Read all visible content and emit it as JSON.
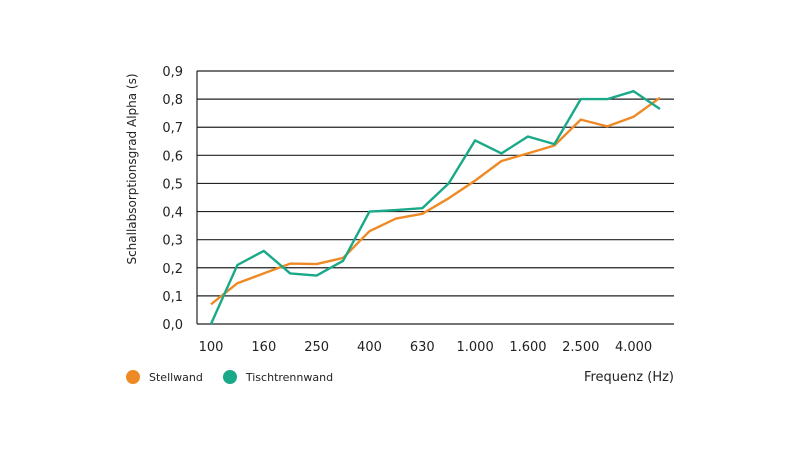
{
  "chart_data": {
    "type": "line",
    "title": "",
    "xlabel": "Frequenz (Hz)",
    "ylabel": "Schallabsorptionsgrad Alpha (s)",
    "ylim": [
      0,
      0.9
    ],
    "y_ticks": [
      "0,0",
      "0,1",
      "0,2",
      "0,3",
      "0,4",
      "0,5",
      "0,6",
      "0,7",
      "0,8",
      "0,9"
    ],
    "x": [
      "100",
      "125",
      "160",
      "200",
      "250",
      "315",
      "400",
      "500",
      "630",
      "800",
      "1.000",
      "1.250",
      "1.600",
      "2.000",
      "2.500",
      "3.150",
      "4.000",
      "5.000"
    ],
    "x_tick_labels": [
      "100",
      "160",
      "250",
      "400",
      "630",
      "1.000",
      "1.600",
      "2.500",
      "4.000"
    ],
    "x_tick_indices": [
      0,
      2,
      4,
      6,
      8,
      10,
      12,
      14,
      16
    ],
    "grid": "horizontal",
    "series": [
      {
        "name": "Stellwand",
        "color": "#ee8a25",
        "values": [
          0.07,
          0.145,
          0.18,
          0.215,
          0.213,
          0.235,
          0.33,
          0.375,
          0.392,
          0.447,
          0.51,
          0.58,
          0.607,
          0.635,
          0.727,
          0.703,
          0.737,
          0.805
        ]
      },
      {
        "name": "Tischtrennwand",
        "color": "#19a989",
        "values": [
          0.0,
          0.21,
          0.26,
          0.18,
          0.172,
          0.225,
          0.4,
          0.405,
          0.412,
          0.5,
          0.653,
          0.607,
          0.667,
          0.64,
          0.8,
          0.8,
          0.828,
          0.765
        ]
      }
    ]
  }
}
